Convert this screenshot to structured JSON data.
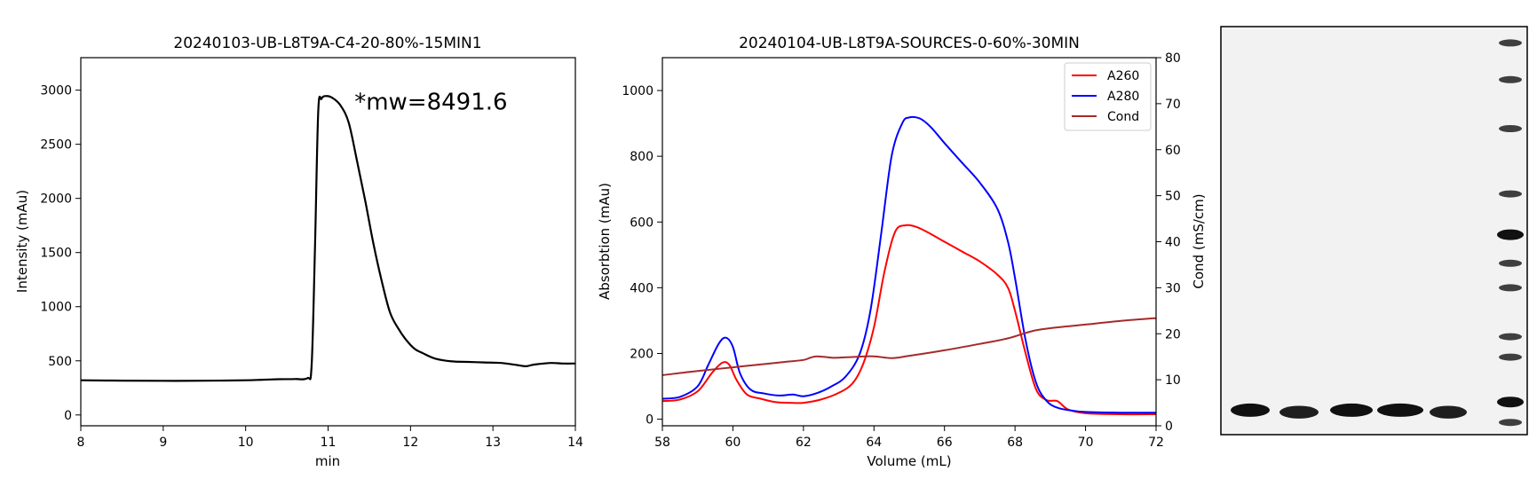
{
  "colors": {
    "lc_trace": "#000000",
    "a260": "#ff0000",
    "a280": "#0000ff",
    "cond": "#a52a2a",
    "gel_background": "#f2f2f2",
    "gel_band": "#111111"
  },
  "chart_data": [
    {
      "type": "line",
      "title": "20240103-UB-L8T9A-C4-20-80%-15MIN1",
      "xlabel": "min",
      "ylabel": "Intensity (mAu)",
      "xlim": [
        8,
        14
      ],
      "ylim": [
        -100,
        3300
      ],
      "xticks": [
        8,
        9,
        10,
        11,
        12,
        13,
        14
      ],
      "yticks": [
        0,
        500,
        1000,
        1500,
        2000,
        2500,
        3000
      ],
      "annotation": {
        "text": "*mw=8491.6",
        "x": 11.32,
        "y": 2820
      },
      "grid": false,
      "series": [
        {
          "x": [
            8.0,
            8.5,
            9.0,
            9.5,
            10.0,
            10.2,
            10.4,
            10.6,
            10.75,
            10.8,
            10.84,
            10.88,
            10.92,
            10.97,
            11.05,
            11.15,
            11.25,
            11.35,
            11.45,
            11.55,
            11.65,
            11.75,
            11.85,
            11.95,
            12.05,
            12.15,
            12.3,
            12.5,
            12.7,
            12.9,
            13.1,
            13.3,
            13.4,
            13.5,
            13.7,
            13.85,
            14.0
          ],
          "y": [
            320,
            317,
            315,
            316,
            320,
            325,
            330,
            332,
            340,
            450,
            1500,
            2800,
            2920,
            2945,
            2930,
            2860,
            2700,
            2350,
            1980,
            1580,
            1240,
            950,
            800,
            690,
            610,
            570,
            520,
            495,
            490,
            485,
            480,
            460,
            450,
            465,
            480,
            475,
            475
          ]
        }
      ]
    },
    {
      "type": "line",
      "title": "20240104-UB-L8T9A-SOURCES-0-60%-30MIN",
      "xlabel": "Volume (mL)",
      "ylabel": "Absorbtion (mAu)",
      "y2label": "Cond (mS/cm)",
      "xlim": [
        58,
        72
      ],
      "ylim": [
        -20,
        1100
      ],
      "y2lim": [
        0,
        80
      ],
      "xticks": [
        58,
        60,
        62,
        64,
        66,
        68,
        70,
        72
      ],
      "yticks": [
        0,
        200,
        400,
        600,
        800,
        1000
      ],
      "y2ticks": [
        0,
        10,
        20,
        30,
        40,
        50,
        60,
        70,
        80
      ],
      "grid": false,
      "legend": "top-right",
      "series": [
        {
          "name": "A260",
          "axis": "left",
          "x": [
            58,
            58.5,
            59,
            59.4,
            59.7,
            59.9,
            60.1,
            60.4,
            60.8,
            61.2,
            61.6,
            62.0,
            62.5,
            63.0,
            63.4,
            63.7,
            64.0,
            64.3,
            64.6,
            64.9,
            65.2,
            65.5,
            66.0,
            66.5,
            67.0,
            67.5,
            67.8,
            68.0,
            68.3,
            68.6,
            68.9,
            69.2,
            69.5,
            70.0,
            71.0,
            72.0
          ],
          "y": [
            55,
            60,
            85,
            140,
            172,
            165,
            120,
            75,
            62,
            52,
            50,
            50,
            60,
            80,
            110,
            170,
            280,
            450,
            570,
            590,
            585,
            570,
            540,
            510,
            480,
            440,
            400,
            330,
            200,
            90,
            58,
            55,
            30,
            18,
            15,
            15
          ]
        },
        {
          "name": "A280",
          "axis": "left",
          "x": [
            58,
            58.5,
            59,
            59.3,
            59.6,
            59.8,
            60.0,
            60.2,
            60.5,
            60.9,
            61.3,
            61.7,
            62.0,
            62.4,
            62.8,
            63.2,
            63.6,
            63.9,
            64.2,
            64.5,
            64.8,
            65.0,
            65.3,
            65.6,
            66.0,
            66.5,
            67.0,
            67.5,
            67.8,
            68.0,
            68.3,
            68.6,
            68.9,
            69.2,
            69.5,
            70.0,
            71.0,
            72.0
          ],
          "y": [
            62,
            68,
            100,
            165,
            230,
            248,
            220,
            140,
            90,
            78,
            72,
            75,
            70,
            80,
            100,
            130,
            200,
            330,
            560,
            800,
            900,
            918,
            915,
            890,
            840,
            780,
            720,
            640,
            540,
            430,
            240,
            110,
            55,
            35,
            28,
            22,
            20,
            20
          ]
        },
        {
          "name": "Cond",
          "axis": "right",
          "x": [
            58,
            59,
            60,
            61,
            61.5,
            62.0,
            62.2,
            62.4,
            62.8,
            63.0,
            63.5,
            64.0,
            64.5,
            65.0,
            66.0,
            67.0,
            67.8,
            68.5,
            69.0,
            70.0,
            71.0,
            72.0
          ],
          "y": [
            11,
            11.9,
            12.7,
            13.5,
            13.9,
            14.3,
            14.8,
            15.1,
            14.8,
            14.8,
            15.0,
            15.1,
            14.7,
            15.2,
            16.4,
            17.8,
            19.0,
            20.6,
            21.2,
            22.0,
            22.8,
            23.4
          ]
        }
      ]
    },
    {
      "type": "gel",
      "lanes": [
        {
          "bands": [
            {
              "position": 0.94,
              "intensity": 1.0
            }
          ]
        },
        {
          "bands": [
            {
              "position": 0.945,
              "intensity": 0.85
            }
          ]
        },
        {
          "bands": [
            {
              "position": 0.94,
              "intensity": 1.0
            }
          ]
        },
        {
          "bands": [
            {
              "position": 0.94,
              "intensity": 1.0
            }
          ]
        },
        {
          "bands": [
            {
              "position": 0.945,
              "intensity": 0.85
            }
          ]
        }
      ],
      "ladder": {
        "bands": [
          0.04,
          0.13,
          0.25,
          0.41,
          0.51,
          0.58,
          0.64,
          0.76,
          0.81,
          0.92,
          0.97
        ]
      }
    }
  ]
}
